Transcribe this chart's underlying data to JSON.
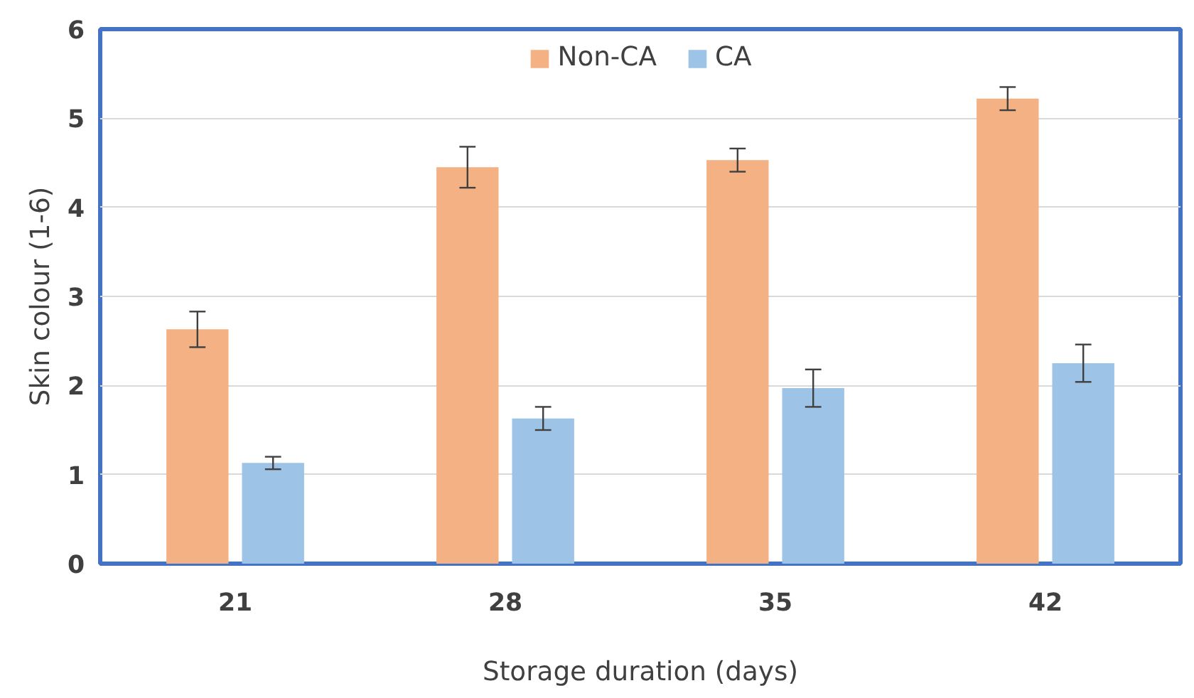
{
  "chart_data": {
    "type": "bar",
    "xlabel": "Storage duration (days)",
    "ylabel": "Skin colour (1-6)",
    "categories": [
      "21",
      "28",
      "35",
      "42"
    ],
    "series": [
      {
        "name": "Non-CA",
        "color": "#f4b183",
        "values": [
          2.63,
          4.45,
          4.53,
          5.22
        ],
        "errors": [
          0.2,
          0.23,
          0.13,
          0.13
        ]
      },
      {
        "name": "CA",
        "color": "#9dc3e6",
        "values": [
          1.13,
          1.63,
          1.97,
          2.25
        ],
        "errors": [
          0.07,
          0.13,
          0.21,
          0.21
        ]
      }
    ],
    "ylim": [
      0,
      6
    ],
    "yticks": [
      0,
      1,
      2,
      3,
      4,
      5,
      6
    ],
    "grid": "y",
    "legend": "top"
  }
}
